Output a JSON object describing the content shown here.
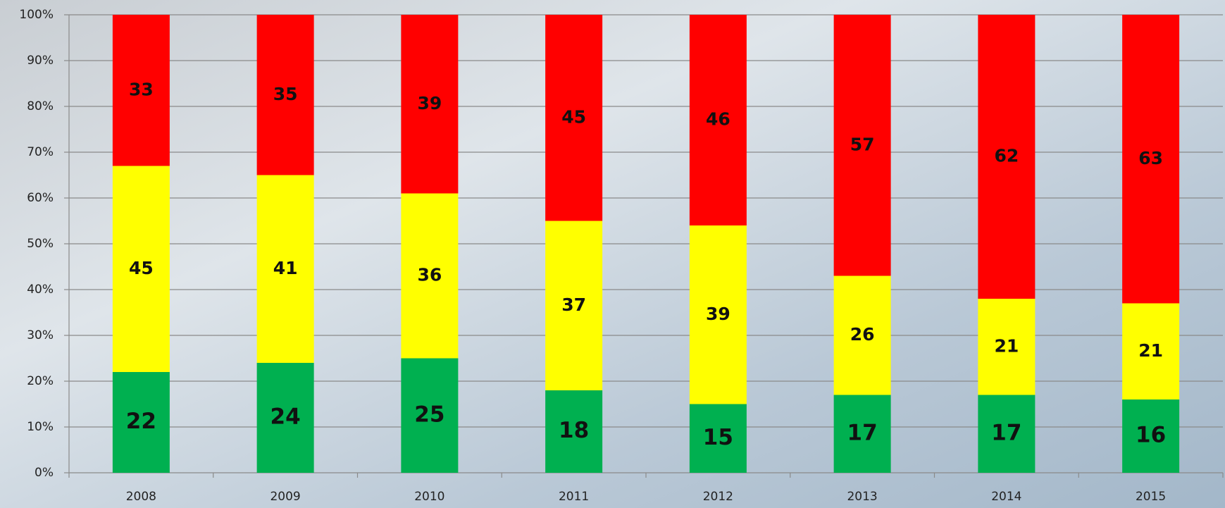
{
  "chart_data": {
    "type": "stacked_bar",
    "categories": [
      "2008",
      "2009",
      "2010",
      "2011",
      "2012",
      "2013",
      "2014",
      "2015"
    ],
    "series": [
      {
        "color": "#00b050",
        "values": [
          22,
          24,
          25,
          18,
          15,
          17,
          17,
          16
        ]
      },
      {
        "color": "#ffff00",
        "values": [
          45,
          41,
          36,
          37,
          39,
          26,
          21,
          21
        ]
      },
      {
        "color": "#ff0000",
        "values": [
          33,
          35,
          39,
          45,
          46,
          57,
          62,
          63
        ]
      }
    ],
    "ylim": [
      0,
      100
    ],
    "yticks": [
      {
        "value": 0,
        "label": "0%"
      },
      {
        "value": 10,
        "label": "10%"
      },
      {
        "value": 20,
        "label": "20%"
      },
      {
        "value": 30,
        "label": "30%"
      },
      {
        "value": 40,
        "label": "40%"
      },
      {
        "value": 50,
        "label": "50%"
      },
      {
        "value": 60,
        "label": "60%"
      },
      {
        "value": 70,
        "label": "70%"
      },
      {
        "value": 80,
        "label": "80%"
      },
      {
        "value": 90,
        "label": "90%"
      },
      {
        "value": 100,
        "label": "100%"
      }
    ],
    "grid": true
  }
}
